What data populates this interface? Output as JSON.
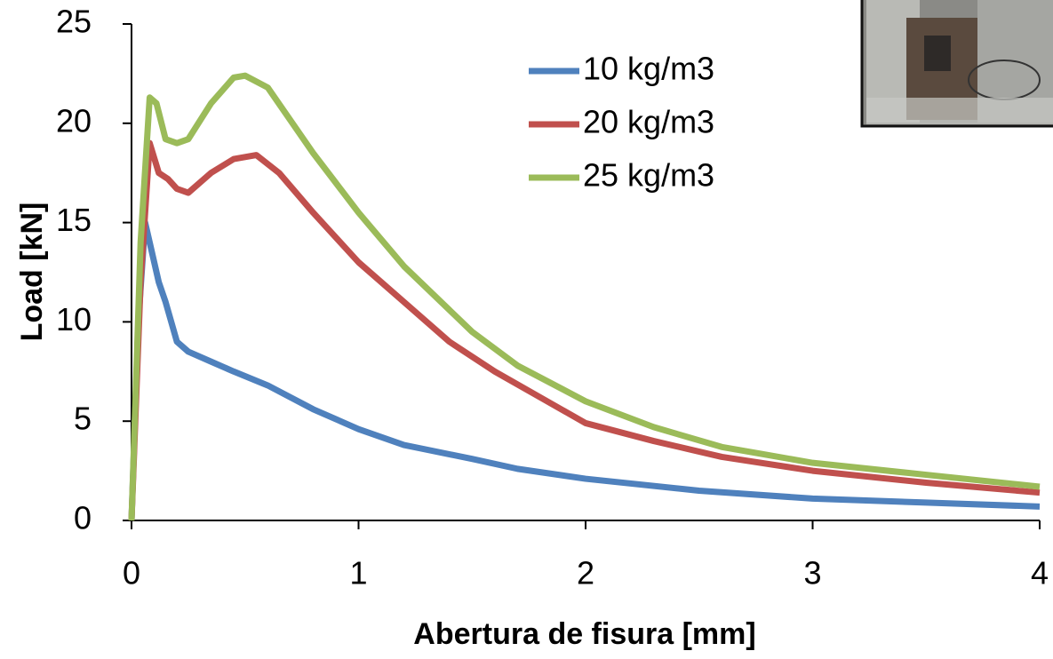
{
  "chart_data": {
    "type": "line",
    "x_label": "Abertura de fisura [mm]",
    "y_label": "Load [kN]",
    "xlim": [
      0,
      4
    ],
    "xticks": [
      0,
      1,
      2,
      3,
      4
    ],
    "ylim": [
      0,
      25
    ],
    "yticks": [
      0,
      5,
      10,
      15,
      20,
      25
    ],
    "grid": false,
    "legend": "top-center",
    "series": [
      {
        "name": "10 kg/m3",
        "color": "#4f81bd",
        "x": [
          0,
          0.03,
          0.06,
          0.08,
          0.12,
          0.15,
          0.2,
          0.25,
          0.35,
          0.45,
          0.6,
          0.8,
          1,
          1.2,
          1.5,
          1.7,
          2,
          2.5,
          3,
          3.5,
          4
        ],
        "values": [
          0,
          10,
          15,
          14,
          12,
          11,
          9,
          8.5,
          8,
          7.5,
          6.8,
          5.6,
          4.6,
          3.8,
          3.1,
          2.6,
          2.1,
          1.5,
          1.1,
          0.9,
          0.7
        ]
      },
      {
        "name": "20 kg/m3",
        "color": "#c0504d",
        "x": [
          0,
          0.04,
          0.08,
          0.12,
          0.16,
          0.2,
          0.25,
          0.35,
          0.45,
          0.55,
          0.65,
          0.8,
          1,
          1.2,
          1.4,
          1.6,
          1.8,
          2,
          2.3,
          2.6,
          3,
          3.5,
          4
        ],
        "values": [
          0,
          12,
          19,
          17.5,
          17.2,
          16.7,
          16.5,
          17.5,
          18.2,
          18.4,
          17.5,
          15.5,
          13,
          11,
          9,
          7.5,
          6.2,
          4.9,
          4,
          3.2,
          2.5,
          1.9,
          1.4
        ]
      },
      {
        "name": "25 kg/m3",
        "color": "#9bbb59",
        "x": [
          0,
          0.04,
          0.08,
          0.11,
          0.15,
          0.2,
          0.25,
          0.35,
          0.45,
          0.5,
          0.6,
          0.8,
          1,
          1.2,
          1.5,
          1.7,
          2,
          2.3,
          2.6,
          3,
          3.5,
          4
        ],
        "values": [
          0,
          14,
          21.3,
          21,
          19.2,
          19,
          19.2,
          21,
          22.3,
          22.4,
          21.8,
          18.5,
          15.5,
          12.8,
          9.5,
          7.8,
          6,
          4.7,
          3.7,
          2.9,
          2.3,
          1.7
        ]
      }
    ]
  }
}
